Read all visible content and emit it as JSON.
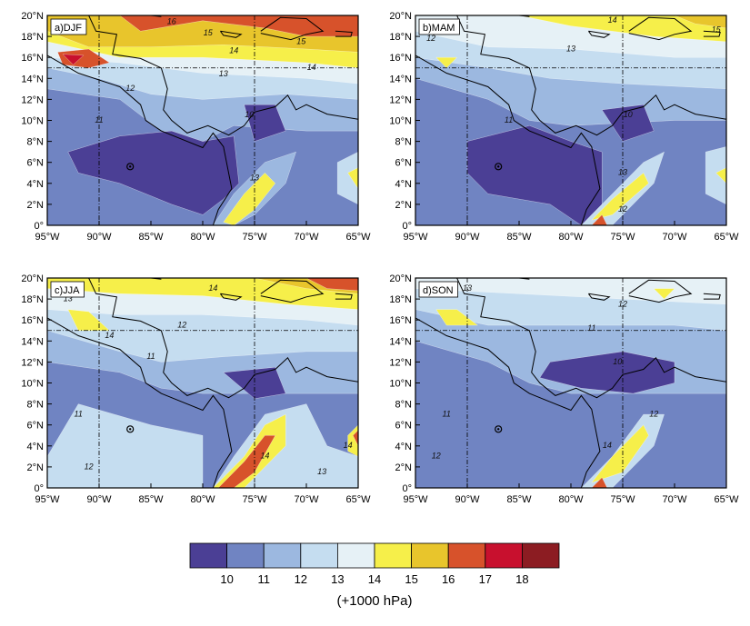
{
  "panels": [
    {
      "label": "a)DJF",
      "contour_labels": [
        "16",
        "15",
        "14",
        "13",
        "12",
        "11",
        "10",
        "13",
        "14",
        "15"
      ]
    },
    {
      "label": "b)MAM",
      "contour_labels": [
        "14",
        "13",
        "12",
        "11",
        "10",
        "13",
        "12",
        "15"
      ]
    },
    {
      "label": "c)JJA",
      "contour_labels": [
        "13",
        "14",
        "14",
        "12",
        "11",
        "11",
        "12",
        "14",
        "13",
        "14"
      ]
    },
    {
      "label": "d)SON",
      "contour_labels": [
        "13",
        "12",
        "11",
        "10",
        "12",
        "14",
        "11",
        "12"
      ]
    }
  ],
  "lon_ticks": [
    "95°W",
    "90°W",
    "85°W",
    "80°W",
    "75°W",
    "70°W",
    "65°W"
  ],
  "lat_ticks": [
    "20°N",
    "18°N",
    "16°N",
    "14°N",
    "12°N",
    "10°N",
    "8°N",
    "6°N",
    "4°N",
    "2°N",
    "0°"
  ],
  "colorbar": {
    "colors": [
      "#4b3f95",
      "#7084c2",
      "#9cb8e0",
      "#c5ddf0",
      "#e6f1f6",
      "#f6ef4a",
      "#e8c52c",
      "#d7522b",
      "#c8102e",
      "#8c1c22"
    ],
    "ticks": [
      "10",
      "11",
      "12",
      "13",
      "14",
      "15",
      "16",
      "17",
      "18"
    ],
    "unit": "(+1000 hPa)"
  }
}
